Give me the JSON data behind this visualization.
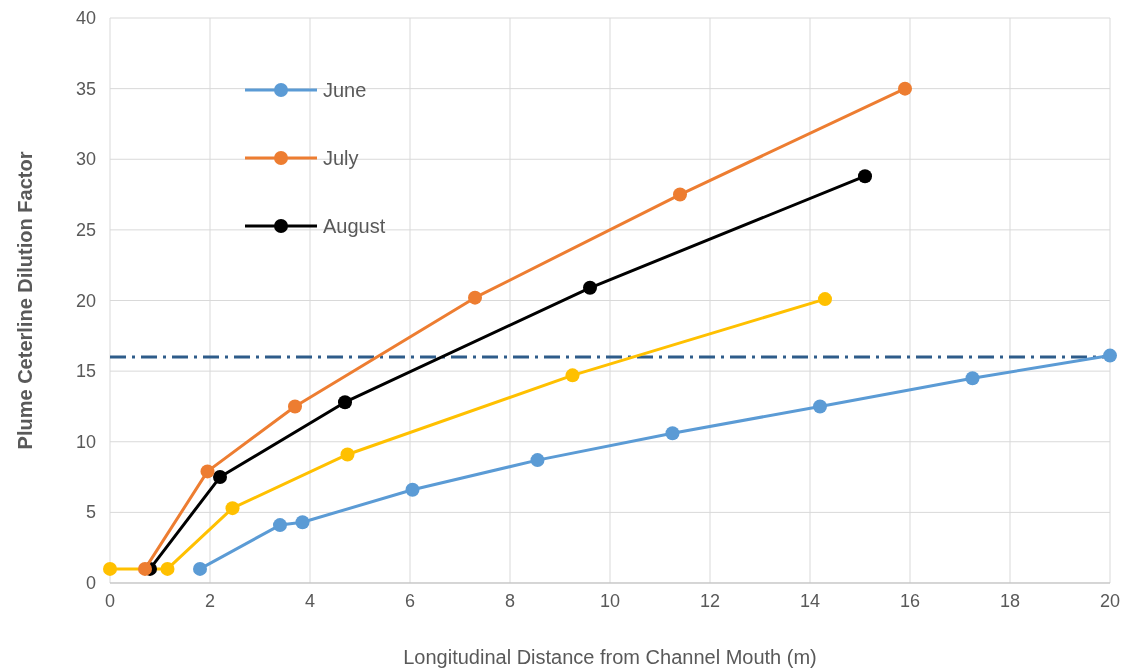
{
  "chart_data": {
    "type": "line",
    "xlabel": "Longitudinal Distance from Channel Mouth (m)",
    "ylabel": "Plume Ceterline Dilution Factor",
    "xlim": [
      0,
      20
    ],
    "xticks": [
      0,
      2,
      4,
      6,
      8,
      10,
      12,
      14,
      16,
      18,
      20
    ],
    "ylim": [
      0,
      40
    ],
    "yticks": [
      0,
      5,
      10,
      15,
      20,
      25,
      30,
      35,
      40
    ],
    "grid": true,
    "legend": "top left",
    "marker": "circle",
    "line_style": "solid",
    "series": [
      {
        "name": "June",
        "color": "#5b9bd5",
        "x": [
          1.8,
          3.4,
          3.85,
          6.05,
          8.55,
          11.25,
          14.2,
          17.25,
          20
        ],
        "values": [
          1,
          4.1,
          4.3,
          6.6,
          8.7,
          10.6,
          12.5,
          14.5,
          16.1
        ]
      },
      {
        "name": "July",
        "color": "#ed7d31",
        "x": [
          0.7,
          1.95,
          3.7,
          7.3,
          11.4,
          15.9
        ],
        "values": [
          1,
          7.9,
          12.5,
          20.2,
          27.5,
          35
        ]
      },
      {
        "name": "August",
        "color": "#000000",
        "x": [
          0.8,
          2.2,
          4.7,
          9.6,
          15.1
        ],
        "values": [
          1,
          7.5,
          12.8,
          20.9,
          28.8
        ]
      },
      {
        "color": "#ffc000",
        "x": [
          0,
          1.15,
          2.45,
          4.75,
          9.25,
          14.3
        ],
        "values": [
          1,
          1,
          5.3,
          9.1,
          14.7,
          20.1
        ]
      }
    ],
    "ref_lines": [
      {
        "axis": "y",
        "value": 16,
        "color": "#2e5c8a",
        "line_style": "dashed"
      }
    ]
  }
}
